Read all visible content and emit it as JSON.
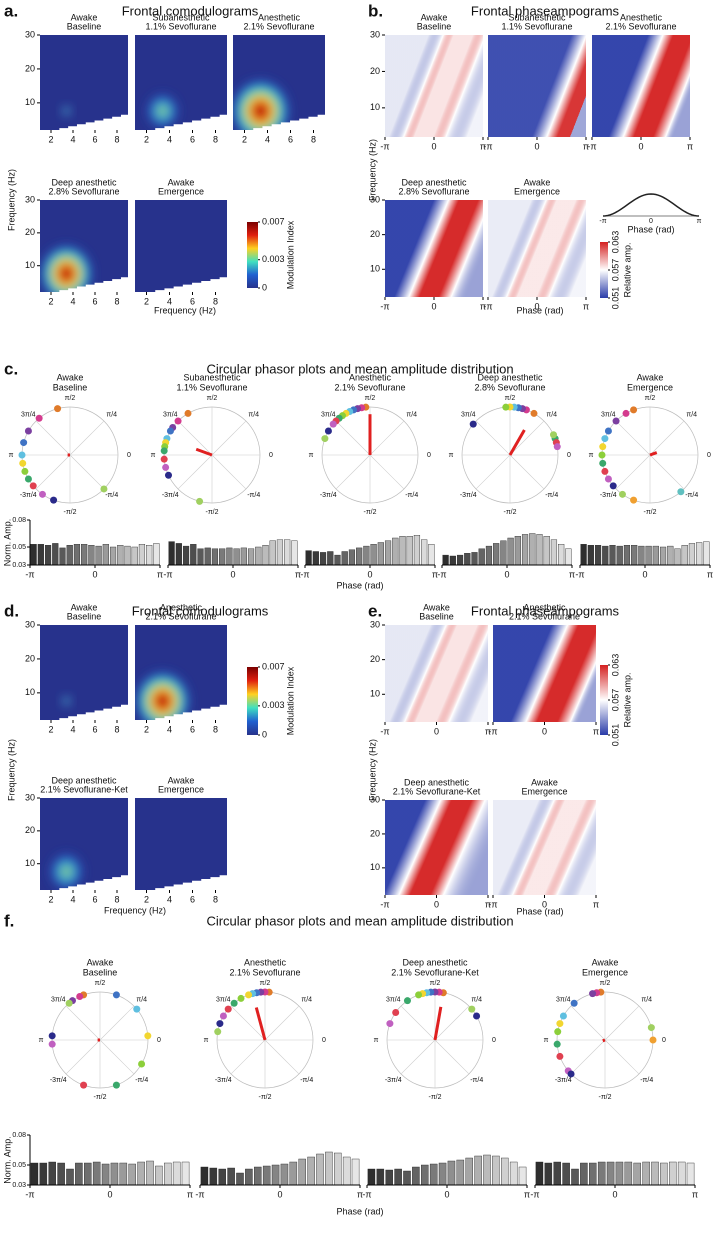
{
  "figure": {
    "a": {
      "letter": "a.",
      "title": "Frontal comodulograms",
      "plots": [
        [
          "Awake",
          "Baseline"
        ],
        [
          "Subanesthetic",
          "1.1% Sevoflurane"
        ],
        [
          "Anesthetic",
          "2.1% Sevoflurane"
        ],
        [
          "Deep anesthetic",
          "2.8% Sevoflurane"
        ],
        [
          "Awake",
          "Emergence"
        ]
      ],
      "xlim": [
        1,
        9
      ],
      "ylim": [
        2,
        30
      ],
      "xticks": [
        2,
        4,
        6,
        8
      ],
      "yticks": [
        10,
        20,
        30
      ],
      "xlabel": "Frequency (Hz)",
      "ylabel": "Frequency (Hz)",
      "colorbar": {
        "lim": [
          0,
          0.007
        ],
        "ticks": [
          0,
          0.003,
          0.007
        ],
        "label": "Modulation Index"
      }
    },
    "b": {
      "letter": "b.",
      "title": "Frontal phaseampograms",
      "plots": [
        [
          "Awake",
          "Baseline"
        ],
        [
          "Subanesthetic",
          "1.1% Sevoflurane"
        ],
        [
          "Anesthetic",
          "2.1% Sevoflurane"
        ],
        [
          "Deep anesthetic",
          "2.8% Sevoflurane"
        ],
        [
          "Awake",
          "Emergence"
        ]
      ],
      "xlim": [
        -3.1416,
        3.1416
      ],
      "ylim": [
        2,
        30
      ],
      "xticks": [
        {
          "value": -3.1416,
          "label": "-π"
        },
        0,
        {
          "value": 3.1416,
          "label": "π"
        }
      ],
      "yticks": [
        10,
        20,
        30
      ],
      "xlabel": "Phase (rad)",
      "ylabel": "Frequency (Hz)",
      "colorbar": {
        "lim": [
          0.051,
          0.063
        ],
        "ticks": [
          0.051,
          0.057,
          0.063
        ],
        "label": "Relative amp."
      },
      "inset": {
        "xlabel": "Phase (rad)"
      }
    },
    "c": {
      "letter": "c.",
      "title": "Circular phasor plots and mean amplitude distribution",
      "xlabel": "Phase (rad)",
      "angles": [
        {
          "value": 90,
          "label": "π/2"
        },
        {
          "value": 45,
          "label": "π/4"
        },
        0,
        {
          "value": -45,
          "label": "-π/4"
        },
        {
          "value": -90,
          "label": "-π/2"
        },
        {
          "value": -135,
          "label": "-3π/4"
        },
        {
          "value": 180,
          "label": "π"
        },
        {
          "value": 135,
          "label": "3π/4"
        }
      ],
      "point_colors": [
        "#e07b2a",
        "#d43b8e",
        "#7b3fa0",
        "#3f73c4",
        "#5fbfe0",
        "#f2d630",
        "#8ccf3a",
        "#3aa86b",
        "#e04050",
        "#c060c0",
        "#2a2a8a",
        "#a0d060",
        "#f0a030",
        "#60c0c0"
      ],
      "vector_color": "#e02020"
    },
    "d": {
      "letter": "d.",
      "title": "Frontal comodulograms",
      "plots": [
        [
          "Awake",
          "Baseline"
        ],
        [
          "Anesthetic",
          "2.1% Sevoflurane"
        ],
        [
          "Deep anesthetic",
          "2.1% Sevoflurane-Ket"
        ],
        [
          "Awake",
          "Emergence"
        ]
      ],
      "xlim": [
        1,
        9
      ],
      "ylim": [
        2,
        30
      ],
      "xticks": [
        2,
        4,
        6,
        8
      ],
      "yticks": [
        10,
        20,
        30
      ],
      "xlabel": "Frequency (Hz)",
      "ylabel": "Frequency (Hz)",
      "colorbar": {
        "lim": [
          0,
          0.007
        ],
        "ticks": [
          0,
          0.003,
          0.007
        ],
        "label": "Modulation Index"
      }
    },
    "e": {
      "letter": "e.",
      "title": "Frontal phaseampograms",
      "plots": [
        [
          "Awake",
          "Baseline"
        ],
        [
          "Anesthetic",
          "2.1% Sevoflurane"
        ],
        [
          "Deep anesthetic",
          "2.1% Sevoflurane-Ket"
        ],
        [
          "Awake",
          "Emergence"
        ]
      ],
      "xlim": [
        -3.1416,
        3.1416
      ],
      "ylim": [
        2,
        30
      ],
      "xticks": [
        {
          "value": -3.1416,
          "label": "-π"
        },
        0,
        {
          "value": 3.1416,
          "label": "π"
        }
      ],
      "yticks": [
        10,
        20,
        30
      ],
      "xlabel": "Phase (rad)",
      "ylabel": "Frequency (Hz)",
      "colorbar": {
        "lim": [
          0.051,
          0.063
        ],
        "ticks": [
          0.051,
          0.057,
          0.063
        ],
        "label": "Relative amp."
      }
    },
    "f": {
      "letter": "f.",
      "title": "Circular phasor plots and mean amplitude distribution",
      "xlabel": "Phase (rad)"
    }
  },
  "chart_data": [
    {
      "type": "phasor",
      "title": [
        "Awake",
        "Baseline"
      ],
      "points": [
        105,
        130,
        150,
        165,
        180,
        190,
        200,
        210,
        220,
        235,
        250,
        315
      ],
      "vector_angle": 180,
      "vector_length": 0.05
    },
    {
      "type": "phasor",
      "title": [
        "Subanesthetic",
        "1.1% Sevoflurane"
      ],
      "points": [
        120,
        135,
        145,
        150,
        160,
        165,
        170,
        175,
        185,
        195,
        205,
        255
      ],
      "vector_angle": 160,
      "vector_length": 0.35
    },
    {
      "type": "phasor",
      "title": [
        "Anesthetic",
        "2.1% Sevoflurane"
      ],
      "points": [
        95,
        100,
        105,
        110,
        115,
        120,
        125,
        130,
        135,
        140,
        150,
        160
      ],
      "vector_angle": 90,
      "vector_length": 0.85
    },
    {
      "type": "phasor",
      "title": [
        "Deep anesthetic",
        "2.8% Sevoflurane"
      ],
      "points": [
        60,
        70,
        75,
        80,
        85,
        90,
        95,
        20,
        15,
        10,
        140,
        25
      ],
      "vector_angle": 60,
      "vector_length": 0.6
    },
    {
      "type": "phasor",
      "title": [
        "Awake",
        "Emergence"
      ],
      "points": [
        110,
        120,
        135,
        150,
        160,
        170,
        180,
        190,
        200,
        210,
        220,
        235,
        250,
        310
      ],
      "vector_angle": 20,
      "vector_length": 0.15
    },
    {
      "type": "bar",
      "values": [
        0.053,
        0.053,
        0.052,
        0.054,
        0.049,
        0.052,
        0.053,
        0.053,
        0.052,
        0.051,
        0.053,
        0.05,
        0.052,
        0.051,
        0.05,
        0.053,
        0.052,
        0.054
      ],
      "ylim": [
        0.03,
        0.08
      ],
      "yticks": [
        0.03,
        0.05,
        0.08
      ],
      "ylabel": "Norm. Amp.",
      "xlim": [
        -3.1416,
        3.1416
      ],
      "xticks": [
        {
          "value": -3.1416,
          "label": "-π"
        },
        0,
        {
          "value": 3.1416,
          "label": "π"
        }
      ],
      "color_range": [
        "#2e2e2e",
        "#e6e6e6"
      ]
    },
    {
      "type": "bar",
      "values": [
        0.056,
        0.054,
        0.051,
        0.053,
        0.048,
        0.049,
        0.048,
        0.048,
        0.049,
        0.048,
        0.049,
        0.048,
        0.05,
        0.052,
        0.057,
        0.058,
        0.058,
        0.057
      ],
      "ylim": [
        0.03,
        0.08
      ],
      "xlim": [
        -3.1416,
        3.1416
      ],
      "xticks": [
        {
          "value": -3.1416,
          "label": "-π"
        },
        0,
        {
          "value": 3.1416,
          "label": "π"
        }
      ],
      "color_range": [
        "#2e2e2e",
        "#e6e6e6"
      ]
    },
    {
      "type": "bar",
      "values": [
        0.046,
        0.045,
        0.044,
        0.045,
        0.041,
        0.045,
        0.047,
        0.049,
        0.051,
        0.053,
        0.055,
        0.057,
        0.06,
        0.062,
        0.062,
        0.063,
        0.058,
        0.053
      ],
      "ylim": [
        0.03,
        0.08
      ],
      "xlim": [
        -3.1416,
        3.1416
      ],
      "xticks": [
        {
          "value": -3.1416,
          "label": "-π"
        },
        0,
        {
          "value": 3.1416,
          "label": "π"
        }
      ],
      "color_range": [
        "#2e2e2e",
        "#e6e6e6"
      ]
    },
    {
      "type": "bar",
      "values": [
        0.041,
        0.04,
        0.041,
        0.043,
        0.044,
        0.048,
        0.051,
        0.054,
        0.057,
        0.06,
        0.062,
        0.064,
        0.065,
        0.064,
        0.062,
        0.058,
        0.053,
        0.048
      ],
      "ylim": [
        0.03,
        0.08
      ],
      "xlim": [
        -3.1416,
        3.1416
      ],
      "xticks": [
        {
          "value": -3.1416,
          "label": "-π"
        },
        0,
        {
          "value": 3.1416,
          "label": "π"
        }
      ],
      "color_range": [
        "#2e2e2e",
        "#e6e6e6"
      ]
    },
    {
      "type": "bar",
      "values": [
        0.053,
        0.052,
        0.052,
        0.051,
        0.052,
        0.051,
        0.052,
        0.052,
        0.051,
        0.051,
        0.051,
        0.05,
        0.051,
        0.048,
        0.052,
        0.054,
        0.055,
        0.056
      ],
      "ylim": [
        0.03,
        0.08
      ],
      "xlim": [
        -3.1416,
        3.1416
      ],
      "xticks": [
        {
          "value": -3.1416,
          "label": "-π"
        },
        0,
        {
          "value": 3.1416,
          "label": "π"
        }
      ],
      "color_range": [
        "#2e2e2e",
        "#e6e6e6"
      ]
    },
    {
      "type": "phasor",
      "title": [
        "Awake",
        "Baseline"
      ],
      "points": [
        110,
        115,
        125,
        70,
        40,
        5,
        330,
        290,
        250,
        185,
        175,
        130
      ],
      "vector_angle": 180,
      "vector_length": 0.05
    },
    {
      "type": "phasor",
      "title": [
        "Anesthetic",
        "2.1% Sevoflurane"
      ],
      "points": [
        85,
        90,
        95,
        100,
        105,
        110,
        120,
        130,
        140,
        150,
        160,
        170
      ],
      "vector_angle": 105,
      "vector_length": 0.7
    },
    {
      "type": "phasor",
      "title": [
        "Deep anesthetic",
        "2.1% Sevoflurane-Ket"
      ],
      "points": [
        80,
        85,
        90,
        95,
        100,
        105,
        110,
        125,
        145,
        160,
        30,
        40
      ],
      "vector_angle": 80,
      "vector_length": 0.7
    },
    {
      "type": "phasor",
      "title": [
        "Awake",
        "Emergence"
      ],
      "points": [
        95,
        100,
        105,
        130,
        150,
        160,
        170,
        185,
        200,
        220,
        225,
        15,
        0
      ],
      "vector_angle": 200,
      "vector_length": 0.05
    },
    {
      "type": "bar",
      "values": [
        0.052,
        0.052,
        0.053,
        0.052,
        0.046,
        0.052,
        0.052,
        0.053,
        0.051,
        0.052,
        0.052,
        0.051,
        0.053,
        0.054,
        0.049,
        0.052,
        0.053,
        0.053
      ],
      "ylim": [
        0.03,
        0.08
      ],
      "yticks": [
        0.03,
        0.05,
        0.08
      ],
      "ylabel": "Norm. Amp.",
      "xlim": [
        -3.1416,
        3.1416
      ],
      "xticks": [
        {
          "value": -3.1416,
          "label": "-π"
        },
        0,
        {
          "value": 3.1416,
          "label": "π"
        }
      ],
      "color_range": [
        "#2e2e2e",
        "#e6e6e6"
      ]
    },
    {
      "type": "bar",
      "values": [
        0.048,
        0.047,
        0.046,
        0.047,
        0.042,
        0.046,
        0.048,
        0.049,
        0.05,
        0.051,
        0.053,
        0.056,
        0.058,
        0.061,
        0.063,
        0.062,
        0.058,
        0.056
      ],
      "ylim": [
        0.03,
        0.08
      ],
      "xlim": [
        -3.1416,
        3.1416
      ],
      "xticks": [
        {
          "value": -3.1416,
          "label": "-π"
        },
        0,
        {
          "value": 3.1416,
          "label": "π"
        }
      ],
      "color_range": [
        "#2e2e2e",
        "#e6e6e6"
      ]
    },
    {
      "type": "bar",
      "values": [
        0.046,
        0.046,
        0.045,
        0.046,
        0.044,
        0.048,
        0.05,
        0.051,
        0.052,
        0.054,
        0.055,
        0.057,
        0.059,
        0.06,
        0.059,
        0.057,
        0.053,
        0.048
      ],
      "ylim": [
        0.03,
        0.08
      ],
      "xlim": [
        -3.1416,
        3.1416
      ],
      "xticks": [
        {
          "value": -3.1416,
          "label": "-π"
        },
        0,
        {
          "value": 3.1416,
          "label": "π"
        }
      ],
      "color_range": [
        "#2e2e2e",
        "#e6e6e6"
      ]
    },
    {
      "type": "bar",
      "values": [
        0.053,
        0.052,
        0.053,
        0.052,
        0.046,
        0.052,
        0.052,
        0.053,
        0.053,
        0.053,
        0.053,
        0.052,
        0.053,
        0.053,
        0.052,
        0.053,
        0.053,
        0.052
      ],
      "ylim": [
        0.03,
        0.08
      ],
      "xlim": [
        -3.1416,
        3.1416
      ],
      "xticks": [
        {
          "value": -3.1416,
          "label": "-π"
        },
        0,
        {
          "value": 3.1416,
          "label": "π"
        }
      ],
      "color_range": [
        "#2e2e2e",
        "#e6e6e6"
      ]
    }
  ]
}
